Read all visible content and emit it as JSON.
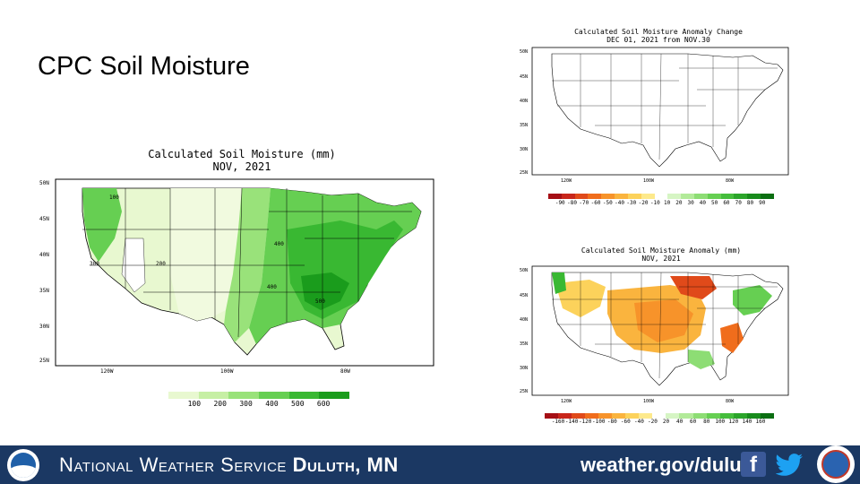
{
  "slide": {
    "title": "CPC Soil Moisture"
  },
  "main_map": {
    "title_line1": "Calculated Soil Moisture (mm)",
    "title_line2": "NOV, 2021",
    "lat_labels": [
      "50N",
      "45N",
      "40N",
      "35N",
      "30N",
      "25N"
    ],
    "lon_labels": [
      "120W",
      "100W",
      "80W"
    ],
    "contour_labels": [
      "100",
      "200",
      "300",
      "400",
      "400",
      "500"
    ],
    "legend": {
      "labels": [
        "100",
        "200",
        "300",
        "400",
        "500",
        "600"
      ],
      "colors": [
        "#e8f8d0",
        "#c6efa4",
        "#99e27a",
        "#66cf52",
        "#39b832",
        "#1a9c1c"
      ]
    }
  },
  "change_map": {
    "title_line1": "Calculated Soil Moisture Anomaly Change",
    "title_line2": "DEC 01, 2021 from NOV.30",
    "lat_labels": [
      "50N",
      "45N",
      "40N",
      "35N",
      "30N",
      "25N"
    ],
    "lon_labels": [
      "120W",
      "100W",
      "80W"
    ],
    "legend": {
      "labels": [
        "-90",
        "-80",
        "-70",
        "-60",
        "-50",
        "-40",
        "-30",
        "-20",
        "-10",
        "10",
        "20",
        "30",
        "40",
        "50",
        "60",
        "70",
        "80",
        "90"
      ],
      "colors": [
        "#a50f15",
        "#c8261b",
        "#e04a1a",
        "#f06d1c",
        "#f7932a",
        "#fab43e",
        "#fcd25b",
        "#fde98c",
        "#ffffff",
        "#d6f5c4",
        "#b2ea99",
        "#8ddd74",
        "#66cf52",
        "#45bd3c",
        "#2ba52a",
        "#188b1c",
        "#0b6e12"
      ]
    }
  },
  "anomaly_map": {
    "title_line1": "Calculated Soil Moisture Anomaly (mm)",
    "title_line2": "NOV, 2021",
    "lat_labels": [
      "50N",
      "45N",
      "40N",
      "35N",
      "30N",
      "25N"
    ],
    "lon_labels": [
      "120W",
      "100W",
      "80W"
    ],
    "legend": {
      "labels": [
        "-160",
        "-140",
        "-120",
        "-100",
        "-80",
        "-60",
        "-40",
        "-20",
        "20",
        "40",
        "60",
        "80",
        "100",
        "120",
        "140",
        "160"
      ],
      "colors": [
        "#a50f15",
        "#c8261b",
        "#e04a1a",
        "#f06d1c",
        "#f7932a",
        "#fab43e",
        "#fcd25b",
        "#fde98c",
        "#ffffff",
        "#d6f5c4",
        "#b2ea99",
        "#8ddd74",
        "#66cf52",
        "#45bd3c",
        "#2ba52a",
        "#188b1c",
        "#0b6e12"
      ]
    }
  },
  "footer": {
    "org_prefix": "National Weather Service",
    "office": "Duluth, MN",
    "url": "weather.gov/duluth",
    "icons": [
      "noaa-logo",
      "facebook-icon",
      "twitter-icon",
      "nws-logo"
    ]
  }
}
